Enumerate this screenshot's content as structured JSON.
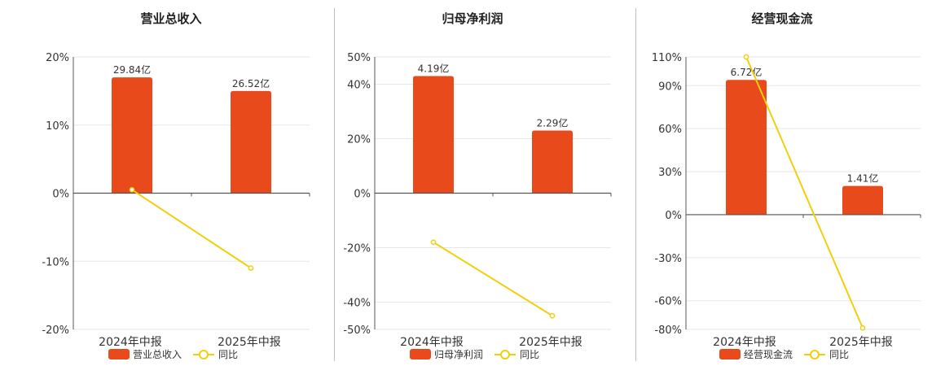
{
  "charts": [
    {
      "title": "营业总收入",
      "legend": {
        "bar": "营业总收入",
        "line": "同比"
      },
      "chart_data": {
        "type": "bar",
        "categories": [
          "2024年中报",
          "2025年中报"
        ],
        "bar_labels": [
          "29.84亿",
          "26.52亿"
        ],
        "bar_values": [
          29.84,
          26.52
        ],
        "bar_display_pct": [
          17,
          15
        ],
        "yoy_values": [
          0.5,
          -11
        ],
        "ylim": [
          -20,
          20
        ],
        "yticks": [
          20,
          10,
          0,
          -10,
          -20
        ],
        "ytick_labels": [
          "20%",
          "10%",
          "0%",
          "-10%",
          "-20%"
        ]
      }
    },
    {
      "title": "归母净利润",
      "legend": {
        "bar": "归母净利润",
        "line": "同比"
      },
      "chart_data": {
        "type": "bar",
        "categories": [
          "2024年中报",
          "2025年中报"
        ],
        "bar_labels": [
          "4.19亿",
          "2.29亿"
        ],
        "bar_values": [
          4.19,
          2.29
        ],
        "bar_display_pct": [
          43,
          23
        ],
        "yoy_values": [
          -18,
          -45
        ],
        "ylim": [
          -50,
          50
        ],
        "yticks": [
          50,
          40,
          20,
          0,
          -20,
          -40,
          -50
        ],
        "ytick_labels": [
          "50%",
          "40%",
          "20%",
          "0%",
          "-20%",
          "-40%",
          "-50%"
        ]
      }
    },
    {
      "title": "经营现金流",
      "legend": {
        "bar": "经营现金流",
        "line": "同比"
      },
      "chart_data": {
        "type": "bar",
        "categories": [
          "2024年中报",
          "2025年中报"
        ],
        "bar_labels": [
          "6.72亿",
          "1.41亿"
        ],
        "bar_values": [
          6.72,
          1.41
        ],
        "bar_display_pct": [
          94,
          20
        ],
        "yoy_values": [
          110,
          -79
        ],
        "ylim": [
          -80,
          110
        ],
        "yticks": [
          110,
          90,
          60,
          30,
          0,
          -30,
          -60,
          -80
        ],
        "ytick_labels": [
          "110%",
          "90%",
          "60%",
          "30%",
          "0%",
          "-30%",
          "-60%",
          "-80%"
        ]
      }
    }
  ],
  "colors": {
    "bar": "#E84A1C",
    "line": "#F2CF0C",
    "axis": "#555555",
    "grid": "#e6e6ee",
    "divider": "#bfbfbf"
  }
}
